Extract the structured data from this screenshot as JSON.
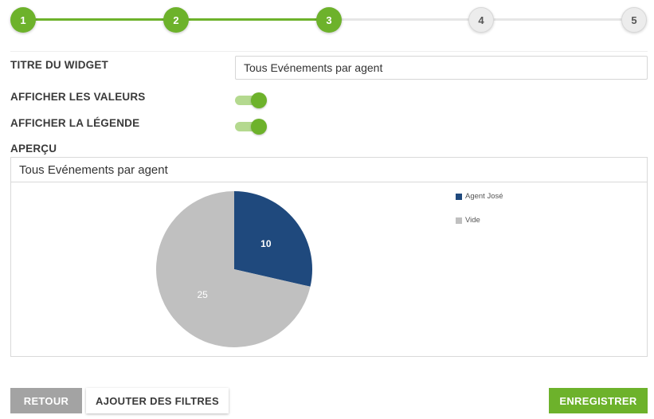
{
  "stepper": {
    "steps": [
      {
        "label": "1",
        "state": "done"
      },
      {
        "label": "2",
        "state": "done"
      },
      {
        "label": "3",
        "state": "current"
      },
      {
        "label": "4",
        "state": "todo"
      },
      {
        "label": "5",
        "state": "todo"
      }
    ],
    "accent_color": "#6db22b"
  },
  "form": {
    "widget_title_label": "TITRE DU WIDGET",
    "widget_title_value": "Tous Evénements par agent",
    "show_values_label": "AFFICHER LES VALEURS",
    "show_values_on": true,
    "show_legend_label": "AFFICHER LA LÉGENDE",
    "show_legend_on": true,
    "preview_label": "APERÇU"
  },
  "preview": {
    "title": "Tous Evénements par agent"
  },
  "chart_data": {
    "type": "pie",
    "title": "Tous Evénements par agent",
    "slices": [
      {
        "name": "Agent José",
        "value": 10,
        "color": "#1f497d"
      },
      {
        "name": "Vide",
        "value": 25,
        "color": "#c0c0c0"
      }
    ],
    "show_values": true,
    "legend": "right"
  },
  "buttons": {
    "back": "RETOUR",
    "add_filters": "AJOUTER DES FILTRES",
    "save": "ENREGISTRER"
  }
}
